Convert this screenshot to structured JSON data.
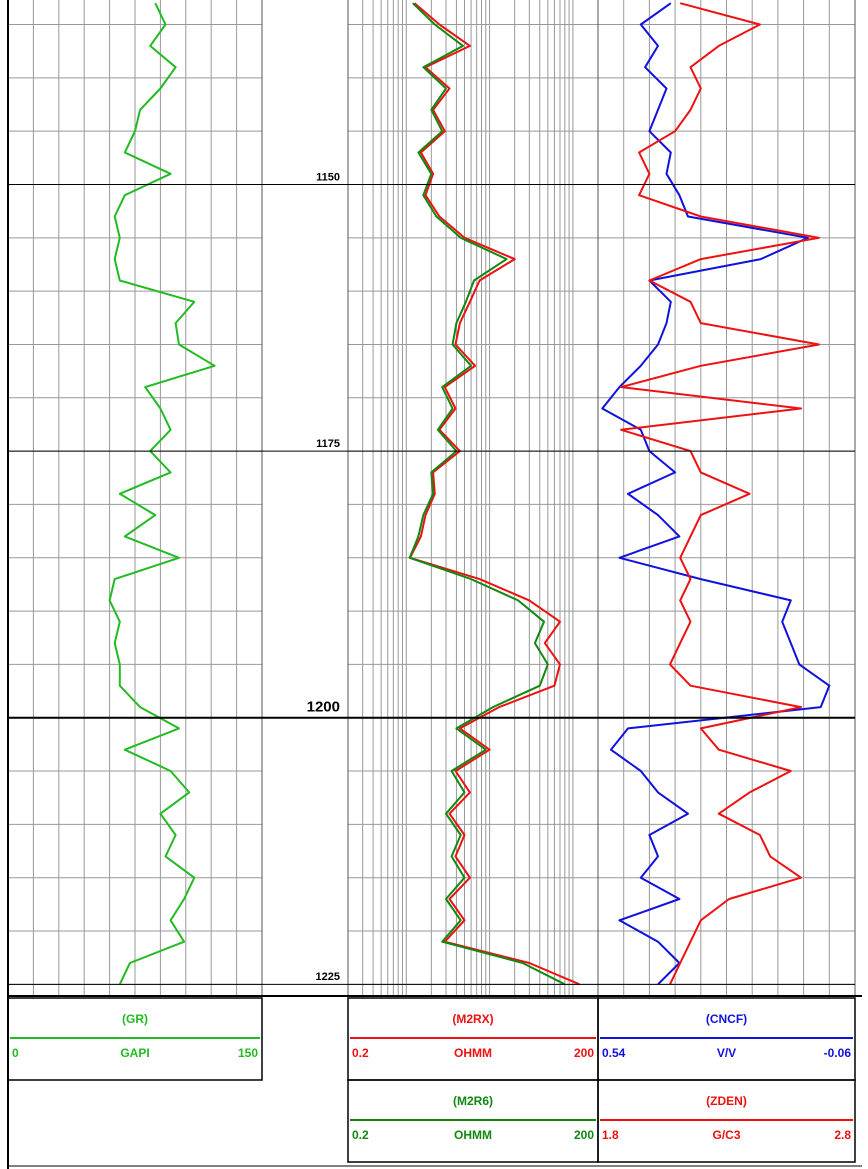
{
  "chart_data": {
    "type": "well-log",
    "ylim": [
      1132.7,
      1226
    ],
    "yticks": [
      1150,
      1175,
      1200,
      1225
    ],
    "ygrid": [
      1135,
      1140,
      1145,
      1150,
      1155,
      1160,
      1165,
      1170,
      1175,
      1180,
      1185,
      1190,
      1195,
      1200,
      1205,
      1210,
      1215,
      1220,
      1225
    ],
    "depth": [
      1133,
      1135,
      1137,
      1139,
      1141,
      1143,
      1145,
      1147,
      1149,
      1151,
      1153,
      1155,
      1157,
      1159,
      1161,
      1163,
      1165,
      1167,
      1169,
      1171,
      1173,
      1175,
      1177,
      1179,
      1181,
      1183,
      1185,
      1187,
      1189,
      1191,
      1193,
      1195,
      1197,
      1199,
      1201,
      1203,
      1205,
      1207,
      1209,
      1211,
      1213,
      1215,
      1217,
      1219,
      1221,
      1223,
      1225
    ],
    "tracks": [
      {
        "log": false,
        "xticks": [
          0,
          15,
          30,
          45,
          60,
          75,
          90,
          105,
          120,
          135,
          150
        ],
        "series": [
          {
            "name": "(GR)",
            "unit": "GAPI",
            "color": "#22bb22",
            "xlim": [
              0,
              150
            ],
            "values": [
              87,
              93,
              84,
              99,
              90,
              78,
              75,
              69,
              96,
              69,
              63,
              66,
              63,
              66,
              110,
              99,
              101,
              122,
              81,
              90,
              96,
              84,
              96,
              66,
              87,
              69,
              101,
              63,
              60,
              66,
              63,
              66,
              66,
              78,
              101,
              69,
              96,
              107,
              90,
              99,
              93,
              110,
              104,
              96,
              104,
              72,
              66
            ]
          }
        ]
      },
      {
        "log": true,
        "xticks": [
          0.2,
          0.3,
          0.4,
          0.5,
          0.6,
          0.7,
          0.8,
          0.9,
          1,
          2,
          3,
          4,
          5,
          6,
          7,
          8,
          9,
          10,
          20,
          30,
          40,
          50,
          60,
          70,
          80,
          90,
          100,
          200
        ],
        "series": [
          {
            "name": "(M2RX)",
            "unit": "OHMM",
            "color": "#ee1111",
            "xlim": [
              0.2,
              200
            ],
            "values": [
              1.26,
              2.5,
              5.8,
              1.7,
              3.3,
              2.1,
              2.9,
              1.5,
              2.1,
              1.7,
              2.5,
              5,
              20,
              7.6,
              5.8,
              4.4,
              3.9,
              6.7,
              2.9,
              3.9,
              2.5,
              4.4,
              2.1,
              2.2,
              1.7,
              1.5,
              1.11,
              7.6,
              30,
              70,
              46,
              70,
              60,
              13,
              4.4,
              10,
              3.9,
              5.8,
              3.3,
              5,
              3.9,
              5.8,
              3.3,
              5,
              2.9,
              30,
              120
            ]
          },
          {
            "name": "(M2R6)",
            "unit": "OHMM",
            "color": "#118811",
            "xlim": [
              0.2,
              200
            ],
            "values": [
              1.2,
              2.2,
              4.8,
              1.6,
              3.0,
              2.0,
              2.7,
              1.4,
              2.0,
              1.6,
              2.3,
              4.5,
              16,
              6.5,
              5.2,
              4.0,
              3.6,
              6.0,
              2.7,
              3.6,
              2.4,
              4.0,
              2.0,
              2.1,
              1.6,
              1.4,
              1.1,
              6.0,
              22,
              45,
              35,
              50,
              40,
              11,
              4.0,
              9.0,
              3.5,
              5.0,
              3.0,
              4.5,
              3.5,
              5.0,
              3.0,
              4.5,
              2.7,
              25,
              80
            ]
          }
        ]
      },
      {
        "log": false,
        "xticks": [
          0.54,
          0.48,
          0.42,
          0.36,
          0.3,
          0.24,
          0.18,
          0.12,
          0.06,
          0,
          -0.06
        ],
        "series": [
          {
            "name": "(CNCF)",
            "unit": "V/V",
            "color": "#1111dd",
            "xlim": [
              0.54,
              -0.06
            ],
            "values": [
              0.37,
              0.44,
              0.4,
              0.43,
              0.38,
              0.4,
              0.42,
              0.37,
              0.38,
              0.35,
              0.33,
              0.05,
              0.16,
              0.42,
              0.37,
              0.38,
              0.4,
              0.44,
              0.49,
              0.53,
              0.44,
              0.42,
              0.36,
              0.47,
              0.4,
              0.35,
              0.49,
              0.3,
              0.09,
              0.11,
              0.09,
              0.07,
              0.0,
              0.02,
              0.47,
              0.51,
              0.44,
              0.4,
              0.33,
              0.42,
              0.4,
              0.44,
              0.35,
              0.49,
              0.4,
              0.35,
              0.4
            ]
          },
          {
            "name": "(ZDEN)",
            "unit": "G/C3",
            "color": "#ee1111",
            "xlim": [
              1.8,
              2.8
            ],
            "values": [
              2.12,
              2.43,
              2.27,
              2.16,
              2.2,
              2.16,
              2.1,
              1.96,
              2.0,
              1.96,
              2.2,
              2.66,
              2.2,
              2.0,
              2.16,
              2.2,
              2.66,
              2.2,
              1.89,
              2.59,
              1.89,
              2.16,
              2.2,
              2.39,
              2.2,
              2.16,
              2.12,
              2.16,
              2.12,
              2.16,
              2.12,
              2.08,
              2.16,
              2.59,
              2.2,
              2.27,
              2.55,
              2.39,
              2.27,
              2.43,
              2.47,
              2.59,
              2.31,
              2.2,
              2.16,
              2.12,
              2.08
            ]
          }
        ]
      }
    ]
  }
}
